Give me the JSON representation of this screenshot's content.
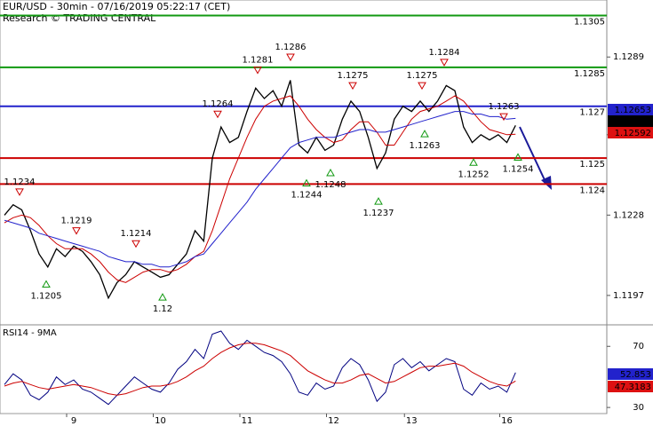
{
  "chart_data": [
    {
      "type": "line",
      "title": "EUR/USD - 30min - 07/16/2019 05:22:17 (CET)",
      "subtitle": "Research © TRADING CENTRAL",
      "ylim": [
        1.1186,
        1.1311
      ],
      "yticks": [
        1.1197,
        1.1228,
        1.1259,
        1.1289
      ],
      "series": [
        {
          "name": "Price",
          "color": "#000000",
          "values": [
            1.1228,
            1.1232,
            1.123,
            1.1222,
            1.1213,
            1.1208,
            1.1215,
            1.1212,
            1.1216,
            1.1214,
            1.121,
            1.1205,
            1.1196,
            1.1202,
            1.1205,
            1.121,
            1.1208,
            1.1206,
            1.1204,
            1.1205,
            1.1209,
            1.1213,
            1.1222,
            1.1218,
            1.125,
            1.1262,
            1.1256,
            1.1258,
            1.1268,
            1.1277,
            1.1273,
            1.1276,
            1.127,
            1.128,
            1.1255,
            1.1252,
            1.1258,
            1.1253,
            1.1255,
            1.1265,
            1.1272,
            1.1268,
            1.1258,
            1.1246,
            1.1252,
            1.1265,
            1.127,
            1.1268,
            1.1272,
            1.1268,
            1.1272,
            1.1278,
            1.1276,
            1.1262,
            1.1256,
            1.1259,
            1.1257,
            1.1259,
            1.1256,
            1.12626
          ]
        },
        {
          "name": "MA fast",
          "color": "#cc0000",
          "values": [
            1.1225,
            1.1227,
            1.1228,
            1.1227,
            1.1224,
            1.122,
            1.1217,
            1.1215,
            1.1215,
            1.1215,
            1.1213,
            1.121,
            1.1206,
            1.1203,
            1.1202,
            1.1204,
            1.1206,
            1.1207,
            1.1207,
            1.1206,
            1.1207,
            1.1209,
            1.1212,
            1.1214,
            1.1222,
            1.1232,
            1.1242,
            1.125,
            1.1258,
            1.1265,
            1.127,
            1.1272,
            1.1273,
            1.1274,
            1.127,
            1.1265,
            1.1261,
            1.1258,
            1.1256,
            1.1257,
            1.1261,
            1.1264,
            1.1264,
            1.126,
            1.1255,
            1.1255,
            1.126,
            1.1265,
            1.1268,
            1.1269,
            1.127,
            1.1272,
            1.1274,
            1.1272,
            1.1268,
            1.1264,
            1.1261,
            1.126,
            1.1259,
            1.12592
          ]
        },
        {
          "name": "MA slow",
          "color": "#2222cc",
          "values": [
            1.1226,
            1.1225,
            1.1224,
            1.1223,
            1.1221,
            1.122,
            1.1219,
            1.1218,
            1.1217,
            1.1216,
            1.1215,
            1.1214,
            1.1212,
            1.1211,
            1.121,
            1.121,
            1.1209,
            1.1209,
            1.1208,
            1.1208,
            1.1209,
            1.121,
            1.1212,
            1.1213,
            1.1217,
            1.1221,
            1.1225,
            1.1229,
            1.1233,
            1.1238,
            1.1242,
            1.1246,
            1.125,
            1.1254,
            1.1256,
            1.1257,
            1.1258,
            1.1258,
            1.1258,
            1.1259,
            1.126,
            1.1261,
            1.1261,
            1.126,
            1.126,
            1.1261,
            1.1262,
            1.1263,
            1.1264,
            1.1265,
            1.1266,
            1.1267,
            1.1268,
            1.1268,
            1.1267,
            1.1267,
            1.1266,
            1.1266,
            1.1265,
            1.12653
          ]
        }
      ],
      "levels": [
        {
          "value": 1.1305,
          "color": "#119911"
        },
        {
          "value": 1.1285,
          "color": "#119911"
        },
        {
          "value": 1.127,
          "color": "#2222cc"
        },
        {
          "value": 1.125,
          "color": "#cc0000"
        },
        {
          "value": 1.124,
          "color": "#cc0000"
        }
      ],
      "annotations": [
        1.1234,
        1.1219,
        1.1205,
        1.1214,
        1.12,
        1.1264,
        1.1281,
        1.1286,
        1.1244,
        1.1248,
        1.1275,
        1.1237,
        1.1275,
        1.1284,
        1.1263,
        1.1263,
        1.1252,
        1.1254
      ],
      "price_tags": [
        {
          "value": 1.12653,
          "color": "#2222cc"
        },
        {
          "value": 1.12626,
          "color": "#000000"
        },
        {
          "value": 1.12592,
          "color": "#dd1111"
        }
      ]
    },
    {
      "type": "line",
      "title": "RSI14 - 9MA",
      "ylim": [
        26,
        83.5
      ],
      "yticks": [
        30,
        70
      ],
      "categories": [
        null,
        null,
        null,
        null,
        null,
        null,
        null,
        null,
        "9",
        null,
        null,
        null,
        null,
        null,
        null,
        null,
        null,
        null,
        "10",
        null,
        null,
        null,
        null,
        null,
        null,
        null,
        null,
        null,
        "11",
        null,
        null,
        null,
        null,
        null,
        null,
        null,
        null,
        null,
        "12",
        null,
        null,
        null,
        null,
        null,
        null,
        null,
        null,
        "13",
        null,
        null,
        null,
        null,
        null,
        null,
        null,
        null,
        null,
        null,
        "16",
        null
      ],
      "series": [
        {
          "name": "RSI14",
          "color": "#000080",
          "values": [
            45,
            52,
            48,
            38,
            35,
            40,
            50,
            45,
            48,
            42,
            40,
            36,
            32,
            38,
            44,
            50,
            46,
            42,
            40,
            46,
            55,
            60,
            68,
            62,
            78,
            80,
            72,
            68,
            74,
            70,
            66,
            64,
            60,
            52,
            40,
            38,
            46,
            42,
            44,
            56,
            62,
            58,
            48,
            34,
            40,
            58,
            62,
            56,
            60,
            54,
            58,
            62,
            60,
            42,
            38,
            46,
            42,
            44,
            40,
            52.853
          ]
        },
        {
          "name": "9MA",
          "color": "#cc0000",
          "values": [
            44,
            46,
            47,
            45,
            43,
            42,
            43,
            44,
            45,
            44,
            43,
            41,
            39,
            38,
            39,
            41,
            43,
            44,
            44,
            45,
            47,
            50,
            54,
            57,
            62,
            66,
            69,
            71,
            72,
            72,
            71,
            69,
            67,
            64,
            59,
            54,
            51,
            48,
            46,
            46,
            48,
            51,
            52,
            49,
            46,
            47,
            50,
            53,
            56,
            57,
            57,
            58,
            59,
            57,
            53,
            50,
            47,
            45,
            44,
            47.3183
          ]
        }
      ],
      "price_tags": [
        {
          "value": 52.853,
          "color": "#2222cc"
        },
        {
          "value": 47.3183,
          "color": "#dd1111"
        }
      ]
    }
  ]
}
